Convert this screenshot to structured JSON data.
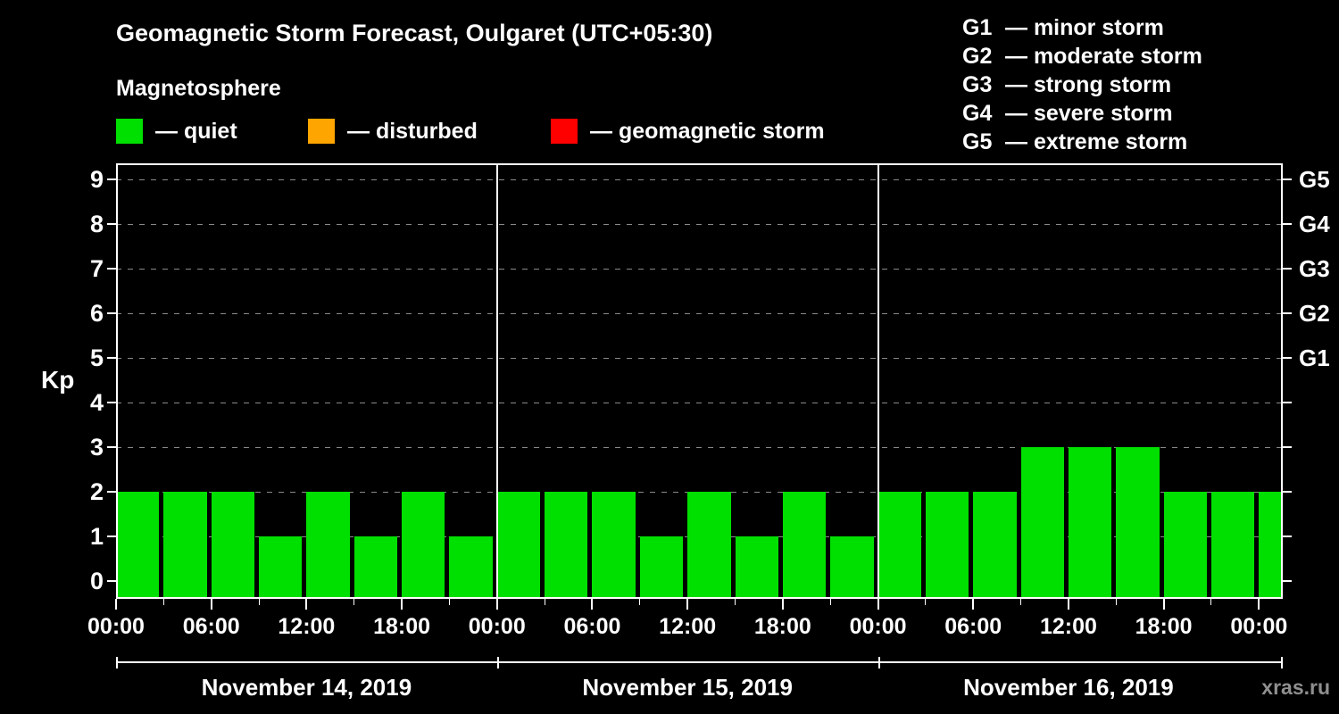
{
  "watermark": "xras.ru",
  "chart_data": {
    "type": "bar",
    "title": "Geomagnetic Storm Forecast, Oulgaret (UTC+05:30)",
    "subtitle": "Magnetosphere",
    "ylabel": "Kp",
    "ylim": [
      -0.4,
      9.36
    ],
    "yticks": [
      0,
      1,
      2,
      3,
      4,
      5,
      6,
      7,
      8,
      9
    ],
    "grid": "dashed-horizontal",
    "bar_color": "#00e000",
    "interval_hours": 3,
    "axis_total_hours": 73.5,
    "legend": [
      {
        "label": "— quiet",
        "color": "#00e000"
      },
      {
        "label": "— disturbed",
        "color": "#ffa500"
      },
      {
        "label": "— geomagnetic storm",
        "color": "#ff0000"
      }
    ],
    "storm_scale_legend": [
      {
        "code": "G1",
        "label": "— minor storm"
      },
      {
        "code": "G2",
        "label": "— moderate storm"
      },
      {
        "code": "G3",
        "label": "— strong storm"
      },
      {
        "code": "G4",
        "label": "— severe storm"
      },
      {
        "code": "G5",
        "label": "— extreme storm"
      }
    ],
    "right_axis": [
      {
        "kp": 5,
        "label": "G1"
      },
      {
        "kp": 6,
        "label": "G2"
      },
      {
        "kp": 7,
        "label": "G3"
      },
      {
        "kp": 8,
        "label": "G4"
      },
      {
        "kp": 9,
        "label": "G5"
      }
    ],
    "x_ticks": [
      {
        "hour": 0,
        "label": "00:00"
      },
      {
        "hour": 6,
        "label": "06:00"
      },
      {
        "hour": 12,
        "label": "12:00"
      },
      {
        "hour": 18,
        "label": "18:00"
      },
      {
        "hour": 24,
        "label": "00:00"
      },
      {
        "hour": 30,
        "label": "06:00"
      },
      {
        "hour": 36,
        "label": "12:00"
      },
      {
        "hour": 42,
        "label": "18:00"
      },
      {
        "hour": 48,
        "label": "00:00"
      },
      {
        "hour": 54,
        "label": "06:00"
      },
      {
        "hour": 60,
        "label": "12:00"
      },
      {
        "hour": 66,
        "label": "18:00"
      },
      {
        "hour": 72,
        "label": "00:00"
      }
    ],
    "day_boundaries_hours": [
      0,
      24,
      48
    ],
    "days": [
      {
        "date": "November 14, 2019",
        "kp_values": [
          2,
          2,
          2,
          1,
          2,
          1,
          2,
          1
        ]
      },
      {
        "date": "November 15, 2019",
        "kp_values": [
          2,
          2,
          2,
          1,
          2,
          1,
          2,
          1
        ]
      },
      {
        "date": "November 16, 2019",
        "kp_values": [
          2,
          2,
          2,
          3,
          3,
          3,
          2,
          2
        ]
      }
    ],
    "next_period_kp": 2
  }
}
